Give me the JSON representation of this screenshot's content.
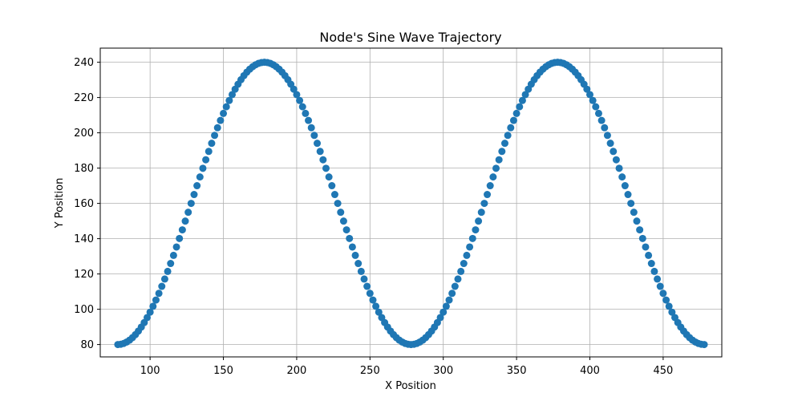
{
  "chart_data": {
    "type": "scatter",
    "title": "Node's Sine Wave Trajectory",
    "xlabel": "X Position",
    "ylabel": "Y Position",
    "xlim": [
      66,
      490
    ],
    "ylim": [
      73,
      248
    ],
    "xticks": [
      100,
      150,
      200,
      250,
      300,
      350,
      400,
      450
    ],
    "yticks": [
      80,
      100,
      120,
      140,
      160,
      180,
      200,
      220,
      240
    ],
    "grid": true,
    "legend": "none",
    "marker_color": "#1f77b4",
    "series": [
      {
        "x_start": 78,
        "x_end": 478,
        "x_step": 2,
        "y_formula": "160 - 80*cos(2*pi*(x-78)/200)"
      }
    ]
  }
}
